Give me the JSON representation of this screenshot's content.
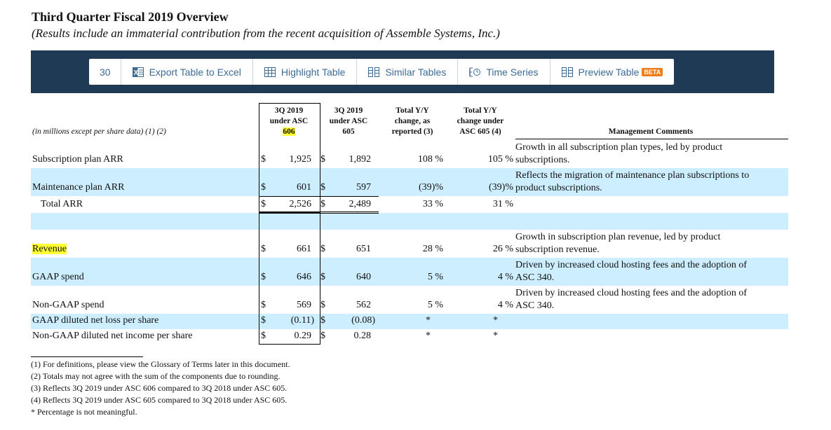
{
  "title": "Third Quarter Fiscal 2019 Overview",
  "subtitle": "(Results include an immaterial contribution from the recent acquisition of Assemble Systems, Inc.)",
  "toolbar": {
    "count": "30",
    "items": [
      {
        "label": "Export Table to Excel",
        "icon": "excel-icon"
      },
      {
        "label": "Highlight Table",
        "icon": "table-icon"
      },
      {
        "label": "Similar Tables",
        "icon": "columns-icon"
      },
      {
        "label": "Time Series",
        "icon": "time-series-icon"
      },
      {
        "label": "Preview Table",
        "icon": "columns-icon",
        "badge": "BETA"
      }
    ],
    "bg_color": "#1f3a54",
    "link_color": "#3c6b96",
    "badge_color": "#f07d1a"
  },
  "table": {
    "units_note": "(in millions except per share data) (1) (2)",
    "headers": {
      "col1_line1": "3Q 2019",
      "col1_line2": "under ASC",
      "col1_line3": "606",
      "col2_line1": "3Q 2019",
      "col2_line2": "under ASC",
      "col2_line3": "605",
      "col3_line1": "Total Y/Y",
      "col3_line2": "change, as",
      "col3_line3": "reported (3)",
      "col4_line1": "Total Y/Y",
      "col4_line2": "change under",
      "col4_line3": "ASC 605 (4)",
      "comments": "Management Comments"
    },
    "rows": [
      {
        "label": "Subscription plan ARR",
        "d1": "$",
        "v1": "1,925",
        "d2": "$",
        "v2": "1,892",
        "c3": "108 %",
        "c4": "105 %",
        "comment1": "Growth in all subscription plan types, led by product",
        "comment2": "subscriptions."
      },
      {
        "label": "Maintenance plan ARR",
        "d1": "$",
        "v1": "601",
        "d2": "$",
        "v2": "597",
        "c3": "(39)%",
        "c4": "(39)%",
        "comment1": "Reflects the migration of maintenance plan subscriptions to",
        "comment2": "product subscriptions."
      },
      {
        "label": "Total ARR",
        "d1": "$",
        "v1": "2,526",
        "d2": "$",
        "v2": "2,489",
        "c3": "33 %",
        "c4": "31 %"
      },
      {
        "label": "Revenue",
        "d1": "$",
        "v1": "661",
        "d2": "$",
        "v2": "651",
        "c3": "28 %",
        "c4": "26 %",
        "comment1": "Growth in subscription plan revenue, led by product",
        "comment2": "subscription revenue."
      },
      {
        "label": "GAAP spend",
        "d1": "$",
        "v1": "646",
        "d2": "$",
        "v2": "640",
        "c3": "5 %",
        "c4": "4 %",
        "comment1": "Driven by increased cloud hosting fees and the adoption of",
        "comment2": "ASC 340."
      },
      {
        "label": "Non-GAAP spend",
        "d1": "$",
        "v1": "569",
        "d2": "$",
        "v2": "562",
        "c3": "5 %",
        "c4": "4 %",
        "comment1": "Driven by increased cloud hosting fees and the adoption of",
        "comment2": "ASC 340."
      },
      {
        "label": "GAAP diluted net loss per share",
        "d1": "$",
        "v1": "(0.11)",
        "d2": "$",
        "v2": "(0.08)",
        "c3": "*",
        "c4": "*"
      },
      {
        "label": "Non-GAAP diluted net income per share",
        "d1": "$",
        "v1": "0.29",
        "d2": "$",
        "v2": "0.28",
        "c3": "*",
        "c4": "*"
      }
    ],
    "row_bg_color": "#cdeeff",
    "highlight_color": "#ffff33"
  },
  "footnotes": [
    "(1) For definitions, please view the Glossary of Terms later in this document.",
    "(2) Totals may not agree with the sum of the components due to rounding.",
    "(3) Reflects 3Q 2019 under ASC 606 compared to 3Q 2018 under ASC 605.",
    "(4) Reflects 3Q 2019 under ASC 605 compared to 3Q 2018 under ASC 605.",
    "* Percentage is not meaningful."
  ]
}
